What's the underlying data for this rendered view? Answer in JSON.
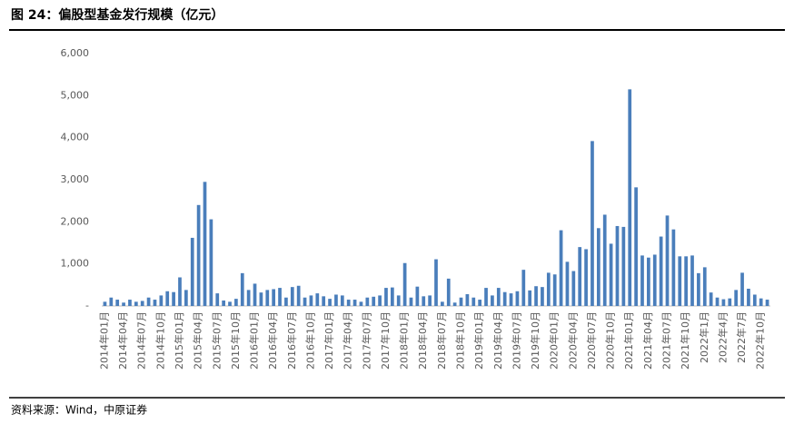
{
  "title": "图 24：偏股型基金发行规模（亿元）",
  "source": "资料来源：Wind，中原证券",
  "chart_data": {
    "type": "bar",
    "color": "#4a7ebb",
    "grid": false,
    "ylim": [
      0,
      6000
    ],
    "yticks": [
      {
        "value": 0,
        "label": "-"
      },
      {
        "value": 1000,
        "label": "1,000"
      },
      {
        "value": 2000,
        "label": "2,000"
      },
      {
        "value": 3000,
        "label": "3,000"
      },
      {
        "value": 4000,
        "label": "4,000"
      },
      {
        "value": 5000,
        "label": "5,000"
      },
      {
        "value": 6000,
        "label": "6,000"
      }
    ],
    "categories": [
      "2014年01月",
      null,
      null,
      "2014年04月",
      null,
      null,
      "2014年07月",
      null,
      null,
      "2014年10月",
      null,
      null,
      "2015年01月",
      null,
      null,
      "2015年04月",
      null,
      null,
      "2015年07月",
      null,
      null,
      "2015年10月",
      null,
      null,
      "2016年01月",
      null,
      null,
      "2016年04月",
      null,
      null,
      "2016年07月",
      null,
      null,
      "2016年10月",
      null,
      null,
      "2017年01月",
      null,
      null,
      "2017年04月",
      null,
      null,
      "2017年07月",
      null,
      null,
      "2017年10月",
      null,
      null,
      "2018年01月",
      null,
      null,
      "2018年04月",
      null,
      null,
      "2018年07月",
      null,
      null,
      "2018年10月",
      null,
      null,
      "2019年01月",
      null,
      null,
      "2019年04月",
      null,
      null,
      "2019年07月",
      null,
      null,
      "2019年10月",
      null,
      null,
      "2020年01月",
      null,
      null,
      "2020年04月",
      null,
      null,
      "2020年07月",
      null,
      null,
      "2020年10月",
      null,
      null,
      "2021年01月",
      null,
      null,
      "2021年04月",
      null,
      null,
      "2021年07月",
      null,
      null,
      "2021年10月",
      null,
      null,
      "2022年1月",
      null,
      null,
      "2022年4月",
      null,
      null,
      "2022年7月",
      null,
      null,
      "2022年10月",
      null
    ],
    "values": [
      100,
      200,
      150,
      80,
      150,
      100,
      120,
      200,
      150,
      250,
      350,
      330,
      680,
      380,
      1620,
      2400,
      2950,
      2060,
      300,
      130,
      100,
      170,
      780,
      380,
      530,
      320,
      380,
      400,
      430,
      200,
      450,
      480,
      200,
      250,
      300,
      230,
      170,
      270,
      250,
      150,
      150,
      100,
      200,
      220,
      250,
      430,
      440,
      250,
      1020,
      200,
      460,
      230,
      250,
      1110,
      100,
      650,
      80,
      200,
      280,
      200,
      150,
      430,
      250,
      430,
      330,
      300,
      350,
      860,
      370,
      470,
      450,
      790,
      750,
      1800,
      1050,
      830,
      1400,
      1350,
      3920,
      1850,
      2170,
      1480,
      1900,
      1880,
      5150,
      2820,
      1200,
      1150,
      1220,
      1650,
      2150,
      1820,
      1180,
      1180,
      1200,
      780,
      920,
      320,
      200,
      160,
      180,
      380,
      790,
      410,
      270,
      180,
      150
    ]
  }
}
